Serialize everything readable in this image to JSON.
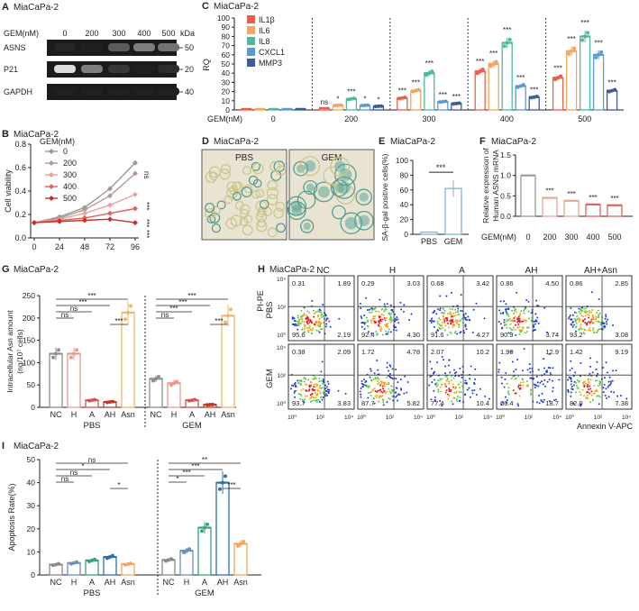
{
  "figure": {
    "panelA": {
      "letter": "A",
      "title": "MiaCaPa-2",
      "gem_label": "GEM(nM)",
      "doses": [
        "0",
        "200",
        "300",
        "400",
        "500"
      ],
      "kda_label": "kDa",
      "bands": [
        {
          "name": "ASNS",
          "kda": "50",
          "intensity": [
            0.92,
            0.95,
            0.7,
            0.55,
            0.6
          ]
        },
        {
          "name": "P21",
          "kda": "20",
          "intensity": [
            0.15,
            0.55,
            0.85,
            0.95,
            0.9
          ]
        },
        {
          "name": "GAPDH",
          "kda": "40",
          "intensity": [
            0.95,
            0.95,
            0.95,
            0.95,
            0.95
          ]
        }
      ]
    },
    "panelB": {
      "letter": "B",
      "title": "MiaCaPa-2",
      "legend_title": "GEM(nM)",
      "sig": [
        "ns",
        "***",
        "***",
        "***"
      ]
    },
    "panelC": {
      "letter": "C",
      "title": "MiaCaPa-2",
      "gem_label": "GEM(nM)",
      "sig": {
        "200": [
          "ns",
          "*",
          "***",
          "*",
          "*"
        ],
        "300": [
          "***",
          "***",
          "***",
          "***",
          "***"
        ],
        "400": [
          "***",
          "***",
          "***",
          "***",
          "***"
        ],
        "500": [
          "***",
          "***",
          "***",
          "***",
          "***"
        ]
      }
    },
    "panelD": {
      "letter": "D",
      "title": "MiaCaPa-2",
      "labels": [
        "PBS",
        "GEM"
      ]
    },
    "panelE": {
      "letter": "E",
      "title": "MiaCaPa-2",
      "sig": "***"
    },
    "panelF": {
      "letter": "F",
      "title": "MiaCaPa-2",
      "sig": [
        "***",
        "***",
        "***",
        "***"
      ]
    },
    "panelG": {
      "letter": "G",
      "title": "MiaCaPa-2",
      "group_labels": [
        "PBS",
        "GEM"
      ],
      "sig_pbs": [
        "***",
        "***",
        "ns",
        "ns",
        "***"
      ],
      "sig_gem": [
        "***",
        "***",
        "***",
        "ns",
        "***"
      ]
    },
    "panelH": {
      "letter": "H",
      "title": "MiaCaPa-2",
      "columns": [
        "NC",
        "H",
        "A",
        "AH",
        "AH+Asn"
      ],
      "rows": [
        "PBS",
        "GEM"
      ],
      "ylabel": "PI-PE",
      "xlabel": "Annexin V-APC",
      "ticks": [
        "10⁰",
        "10²",
        "10⁴"
      ],
      "quadrants": [
        [
          [
            "0.31",
            "1.89",
            "95.6",
            "2.19"
          ],
          [
            "0.29",
            "3.03",
            "92.4",
            "4.30"
          ],
          [
            "0.68",
            "3.42",
            "91.6",
            "4.27"
          ],
          [
            "0.86",
            "4.50",
            "90.9",
            "3.74"
          ],
          [
            "0.86",
            "2.85",
            "93.2",
            "3.08"
          ]
        ],
        [
          [
            "0.38",
            "2.09",
            "93.7",
            "3.83"
          ],
          [
            "1.72",
            "4.78",
            "87.7",
            "5.82"
          ],
          [
            "2.07",
            "10.2",
            "77.4",
            "10.4"
          ],
          [
            "1.90",
            "12.9",
            "66.4",
            "18.7"
          ],
          [
            "1.42",
            "9.19",
            "82.0",
            "7.38"
          ]
        ]
      ]
    },
    "panelI": {
      "letter": "I",
      "title": "MiaCaPa-2",
      "group_labels": [
        "PBS",
        "GEM"
      ],
      "sig_pbs": [
        "ns",
        "*",
        "ns",
        "ns",
        "*"
      ],
      "sig_gem": [
        "**",
        "***",
        "***",
        "*",
        "***"
      ]
    }
  },
  "colors": {
    "IL1B": "#e8604c",
    "IL6": "#f2a65e",
    "IL8": "#4fb99f",
    "CXCL1": "#5b9bd5",
    "MMP3": "#3d5a99",
    "NC": "#8f8f8f",
    "H": "#e79a8e",
    "A": "#d9534f",
    "AH": "#c0392b",
    "Asn": "#f0b76a",
    "I_NC": "#8a8a8a",
    "I_H": "#6f8fb7",
    "I_A": "#3aa27a",
    "I_AH": "#2f6fa8",
    "I_Asn": "#f0a860"
  },
  "chart_data": [
    {
      "panel": "B",
      "type": "line",
      "title": "MiaCaPa-2",
      "xlabel": "",
      "ylabel": "Cell viability",
      "x": [
        0,
        24,
        48,
        72,
        96
      ],
      "ylim": [
        0,
        0.8
      ],
      "yticks": [
        0.0,
        0.2,
        0.4,
        0.6,
        0.8
      ],
      "series": [
        {
          "name": "0",
          "values": [
            0.13,
            0.18,
            0.26,
            0.42,
            0.64
          ],
          "color": "#9a9a9a"
        },
        {
          "name": "200",
          "values": [
            0.13,
            0.17,
            0.24,
            0.36,
            0.55
          ],
          "color": "#b49a9a"
        },
        {
          "name": "300",
          "values": [
            0.13,
            0.16,
            0.21,
            0.28,
            0.37
          ],
          "color": "#e8a49a"
        },
        {
          "name": "400",
          "values": [
            0.13,
            0.15,
            0.17,
            0.21,
            0.25
          ],
          "color": "#e06060"
        },
        {
          "name": "500",
          "values": [
            0.13,
            0.14,
            0.15,
            0.16,
            0.13
          ],
          "color": "#c9302c"
        }
      ]
    },
    {
      "panel": "C",
      "type": "bar",
      "title": "MiaCaPa-2",
      "xlabel": "GEM(nM)",
      "ylabel": "RQ",
      "categories": [
        "0",
        "200",
        "300",
        "400",
        "500"
      ],
      "ylim": [
        0,
        100
      ],
      "yticks": [
        0,
        10,
        20,
        30,
        40,
        50,
        60,
        70,
        80,
        90,
        100
      ],
      "series": [
        {
          "name": "IL1β",
          "values": [
            1,
            2,
            13,
            42,
            35
          ]
        },
        {
          "name": "IL6",
          "values": [
            1,
            5,
            21,
            50,
            64
          ]
        },
        {
          "name": "IL8",
          "values": [
            1,
            12,
            40,
            73,
            80
          ]
        },
        {
          "name": "CXCL1",
          "values": [
            1,
            5,
            9,
            26,
            60
          ]
        },
        {
          "name": "MMP3",
          "values": [
            1,
            4,
            7,
            14,
            21
          ]
        }
      ]
    },
    {
      "panel": "E",
      "type": "bar",
      "title": "MiaCaPa-2",
      "ylabel": "SA-β-gal positive cells(%)",
      "categories": [
        "PBS",
        "GEM"
      ],
      "values": [
        3,
        62
      ],
      "ylim": [
        0,
        100
      ],
      "yticks": [
        0,
        20,
        40,
        60,
        80,
        100
      ]
    },
    {
      "panel": "F",
      "type": "bar",
      "title": "MiaCaPa-2",
      "xlabel": "GEM(nM)",
      "ylabel": "Relative expression of Human ASNS mRNA",
      "categories": [
        "0",
        "200",
        "300",
        "400",
        "500"
      ],
      "values": [
        1.0,
        0.45,
        0.38,
        0.29,
        0.27
      ],
      "ylim": [
        0,
        1.5
      ],
      "yticks": [
        0.0,
        0.5,
        1.0,
        1.5
      ]
    },
    {
      "panel": "G",
      "type": "bar",
      "title": "MiaCaPa-2",
      "ylabel": "Intracellular Asn amount (ng/10⁷ cells)",
      "categories": [
        "NC",
        "H",
        "A",
        "AH",
        "Asn",
        "NC",
        "H",
        "A",
        "AH",
        "Asn"
      ],
      "values": [
        120,
        120,
        16,
        12,
        212,
        64,
        54,
        16,
        6,
        205
      ],
      "ylim": [
        0,
        250
      ],
      "yticks": [
        0,
        50,
        100,
        150,
        200,
        250
      ]
    },
    {
      "panel": "I",
      "type": "bar",
      "title": "MiaCaPa-2",
      "ylabel": "Apoptosis Rate(%)",
      "categories": [
        "NC",
        "H",
        "A",
        "AH",
        "Asn",
        "NC",
        "H",
        "A",
        "AH",
        "Asn"
      ],
      "values": [
        4.5,
        5.2,
        6.3,
        7.8,
        4.7,
        6.5,
        10.5,
        20.5,
        40,
        13.5
      ],
      "ylim": [
        0,
        50
      ],
      "yticks": [
        0,
        10,
        20,
        30,
        40,
        50
      ]
    }
  ]
}
